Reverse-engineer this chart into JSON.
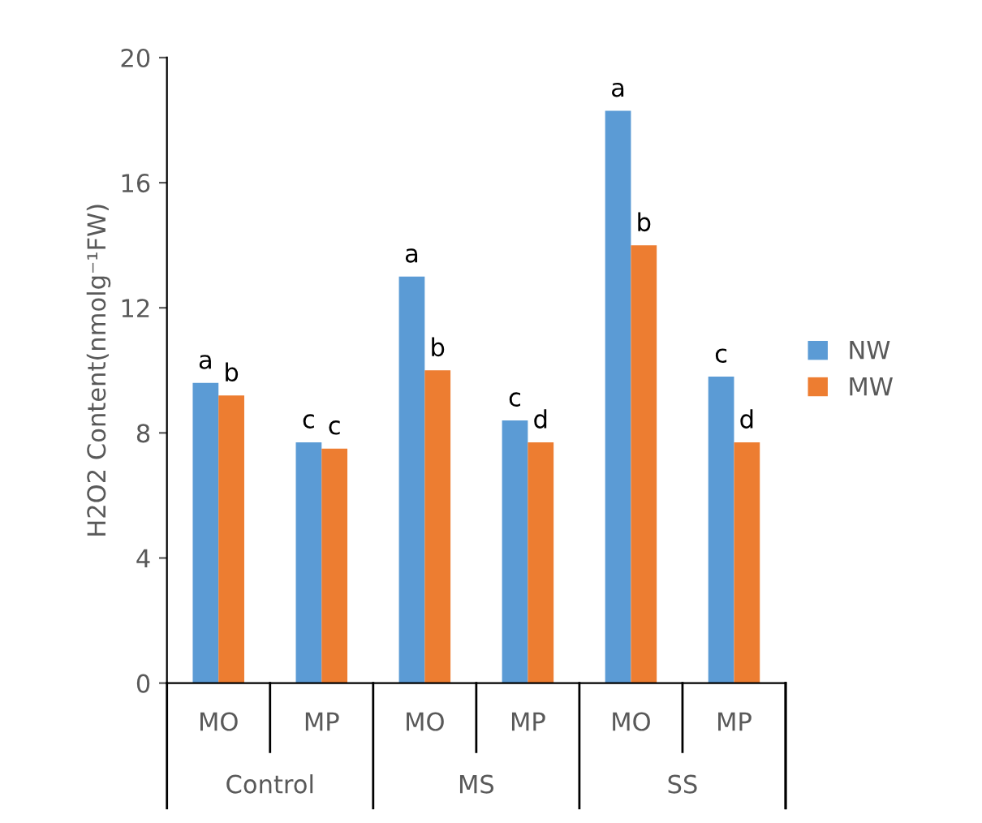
{
  "chart_data": {
    "type": "bar",
    "ylabel": "H2O2 Content(nmolg⁻¹FW)",
    "categories": [
      "MO",
      "MP",
      "MO",
      "MP",
      "MO",
      "MP"
    ],
    "series": [
      {
        "name": "NW",
        "color": "#5b9bd5",
        "values": [
          9.6,
          7.7,
          13.0,
          8.4,
          18.3,
          9.8
        ],
        "value_labels": [
          "a",
          "c",
          "a",
          "c",
          "a",
          "c"
        ]
      },
      {
        "name": "MW",
        "color": "#ed7d31",
        "values": [
          9.2,
          7.5,
          10.0,
          7.7,
          14.0,
          7.7
        ],
        "value_labels": [
          "b",
          "c",
          "b",
          "d",
          "b",
          "d"
        ]
      }
    ],
    "annotations": [
      "Control",
      "MS",
      "SS"
    ],
    "ylim": [
      0,
      20
    ],
    "yticks": [
      0,
      4,
      8,
      12,
      16,
      20
    ],
    "grid": false,
    "legend": "right"
  }
}
